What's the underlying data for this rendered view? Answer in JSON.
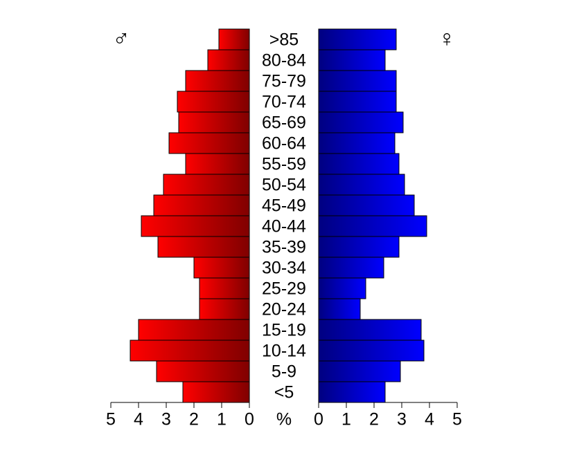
{
  "chart_data": {
    "type": "population_pyramid",
    "categories": [
      ">85",
      "80-84",
      "75-79",
      "70-74",
      "65-69",
      "60-64",
      "55-59",
      "50-54",
      "45-49",
      "40-44",
      "35-39",
      "30-34",
      "25-29",
      "20-24",
      "15-19",
      "10-14",
      "5-9",
      "<5"
    ],
    "series": [
      {
        "name": "♂",
        "color": "#ff0000",
        "values": [
          1.1,
          1.5,
          2.3,
          2.6,
          2.55,
          2.9,
          2.3,
          3.1,
          3.45,
          3.9,
          3.3,
          2.0,
          1.8,
          1.8,
          4.0,
          4.3,
          3.35,
          2.4
        ]
      },
      {
        "name": "♀",
        "color": "#0000ff",
        "values": [
          2.8,
          2.4,
          2.8,
          2.8,
          3.05,
          2.75,
          2.9,
          3.1,
          3.45,
          3.9,
          2.9,
          2.35,
          1.7,
          1.5,
          3.7,
          3.8,
          2.95,
          2.4
        ]
      }
    ],
    "xlim": [
      0,
      5
    ],
    "xticks": [
      0,
      1,
      2,
      3,
      4,
      5
    ],
    "x_label": "%"
  }
}
